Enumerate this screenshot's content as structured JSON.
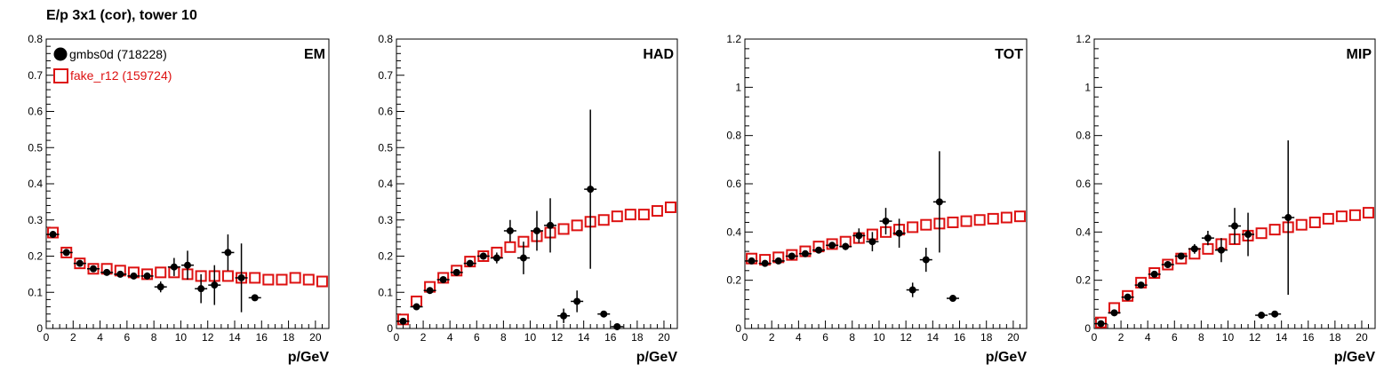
{
  "page": {
    "title": "E/p 3x1 (cor), tower 10"
  },
  "colors": {
    "data": "#000000",
    "mc": "#dd1111",
    "frame": "#000000"
  },
  "legend": [
    {
      "label": "gmbs0d (718228)",
      "color": "#000000",
      "marker": "filled-circle"
    },
    {
      "label": "fake_r12 (159724)",
      "color": "#dd1111",
      "marker": "open-square"
    }
  ],
  "chart_data": [
    {
      "type": "scatter",
      "title": "EM",
      "xlabel": "p/GeV",
      "ylabel": "",
      "xlim": [
        0,
        21
      ],
      "ylim": [
        0,
        0.8
      ],
      "xticks": [
        0,
        2,
        4,
        6,
        8,
        10,
        12,
        14,
        16,
        18,
        20
      ],
      "yticks": [
        0,
        0.1,
        0.2,
        0.3,
        0.4,
        0.5,
        0.6,
        0.7,
        0.8
      ],
      "legend_position": "top-left",
      "series": [
        {
          "name": "gmbs0d (718228)",
          "marker": "filled-circle",
          "x": [
            0.5,
            1.5,
            2.5,
            3.5,
            4.5,
            5.5,
            6.5,
            7.5,
            8.5,
            9.5,
            10.5,
            11.5,
            12.5,
            13.5,
            14.5,
            15.5
          ],
          "y": [
            0.26,
            0.21,
            0.18,
            0.165,
            0.155,
            0.15,
            0.145,
            0.145,
            0.115,
            0.17,
            0.175,
            0.11,
            0.12,
            0.21,
            0.14,
            0.085
          ],
          "yerr": [
            0.005,
            0.005,
            0.005,
            0.005,
            0.006,
            0.007,
            0.008,
            0.01,
            0.015,
            0.025,
            0.04,
            0.04,
            0.055,
            0.05,
            0.095,
            0.005
          ]
        },
        {
          "name": "fake_r12 (159724)",
          "marker": "open-square",
          "x": [
            0.5,
            1.5,
            2.5,
            3.5,
            4.5,
            5.5,
            6.5,
            7.5,
            8.5,
            9.5,
            10.5,
            11.5,
            12.5,
            13.5,
            14.5,
            15.5,
            16.5,
            17.5,
            18.5,
            19.5,
            20.5
          ],
          "y": [
            0.265,
            0.21,
            0.18,
            0.165,
            0.165,
            0.16,
            0.155,
            0.15,
            0.155,
            0.155,
            0.15,
            0.145,
            0.145,
            0.145,
            0.14,
            0.14,
            0.135,
            0.135,
            0.14,
            0.135,
            0.13
          ]
        }
      ]
    },
    {
      "type": "scatter",
      "title": "HAD",
      "xlabel": "p/GeV",
      "ylabel": "",
      "xlim": [
        0,
        21
      ],
      "ylim": [
        0,
        0.8
      ],
      "xticks": [
        0,
        2,
        4,
        6,
        8,
        10,
        12,
        14,
        16,
        18,
        20
      ],
      "yticks": [
        0,
        0.1,
        0.2,
        0.3,
        0.4,
        0.5,
        0.6,
        0.7,
        0.8
      ],
      "series": [
        {
          "name": "gmbs0d (718228)",
          "marker": "filled-circle",
          "x": [
            0.5,
            1.5,
            2.5,
            3.5,
            4.5,
            5.5,
            6.5,
            7.5,
            8.5,
            9.5,
            10.5,
            11.5,
            12.5,
            13.5,
            14.5,
            15.5,
            16.5
          ],
          "y": [
            0.02,
            0.06,
            0.105,
            0.135,
            0.155,
            0.18,
            0.2,
            0.195,
            0.27,
            0.195,
            0.27,
            0.285,
            0.035,
            0.075,
            0.385,
            0.04,
            0.005
          ],
          "yerr": [
            0.004,
            0.004,
            0.005,
            0.005,
            0.006,
            0.008,
            0.01,
            0.015,
            0.03,
            0.045,
            0.055,
            0.075,
            0.02,
            0.03,
            0.22,
            0.005,
            0.005
          ]
        },
        {
          "name": "fake_r12 (159724)",
          "marker": "open-square",
          "x": [
            0.5,
            1.5,
            2.5,
            3.5,
            4.5,
            5.5,
            6.5,
            7.5,
            8.5,
            9.5,
            10.5,
            11.5,
            12.5,
            13.5,
            14.5,
            15.5,
            16.5,
            17.5,
            18.5,
            19.5,
            20.5
          ],
          "y": [
            0.025,
            0.075,
            0.115,
            0.14,
            0.16,
            0.185,
            0.2,
            0.21,
            0.225,
            0.24,
            0.255,
            0.265,
            0.275,
            0.285,
            0.295,
            0.3,
            0.31,
            0.315,
            0.315,
            0.325,
            0.335
          ]
        }
      ]
    },
    {
      "type": "scatter",
      "title": "TOT",
      "xlabel": "p/GeV",
      "ylabel": "",
      "xlim": [
        0,
        21
      ],
      "ylim": [
        0,
        1.2
      ],
      "xticks": [
        0,
        2,
        4,
        6,
        8,
        10,
        12,
        14,
        16,
        18,
        20
      ],
      "yticks": [
        0,
        0.2,
        0.4,
        0.6,
        0.8,
        1,
        1.2
      ],
      "series": [
        {
          "name": "gmbs0d (718228)",
          "marker": "filled-circle",
          "x": [
            0.5,
            1.5,
            2.5,
            3.5,
            4.5,
            5.5,
            6.5,
            7.5,
            8.5,
            9.5,
            10.5,
            11.5,
            12.5,
            13.5,
            14.5,
            15.5
          ],
          "y": [
            0.28,
            0.27,
            0.28,
            0.3,
            0.31,
            0.325,
            0.345,
            0.34,
            0.385,
            0.36,
            0.445,
            0.395,
            0.16,
            0.285,
            0.525,
            0.125
          ],
          "yerr": [
            0.005,
            0.005,
            0.006,
            0.006,
            0.007,
            0.009,
            0.012,
            0.015,
            0.03,
            0.04,
            0.055,
            0.06,
            0.03,
            0.05,
            0.21,
            0.005
          ]
        },
        {
          "name": "fake_r12 (159724)",
          "marker": "open-square",
          "x": [
            0.5,
            1.5,
            2.5,
            3.5,
            4.5,
            5.5,
            6.5,
            7.5,
            8.5,
            9.5,
            10.5,
            11.5,
            12.5,
            13.5,
            14.5,
            15.5,
            16.5,
            17.5,
            18.5,
            19.5,
            20.5
          ],
          "y": [
            0.29,
            0.285,
            0.295,
            0.305,
            0.32,
            0.34,
            0.35,
            0.36,
            0.375,
            0.39,
            0.4,
            0.41,
            0.42,
            0.43,
            0.435,
            0.44,
            0.445,
            0.45,
            0.455,
            0.46,
            0.465
          ]
        }
      ]
    },
    {
      "type": "scatter",
      "title": "MIP",
      "xlabel": "p/GeV",
      "ylabel": "",
      "xlim": [
        0,
        21
      ],
      "ylim": [
        0,
        1.2
      ],
      "xticks": [
        0,
        2,
        4,
        6,
        8,
        10,
        12,
        14,
        16,
        18,
        20
      ],
      "yticks": [
        0,
        0.2,
        0.4,
        0.6,
        0.8,
        1,
        1.2
      ],
      "series": [
        {
          "name": "gmbs0d (718228)",
          "marker": "filled-circle",
          "x": [
            0.5,
            1.5,
            2.5,
            3.5,
            4.5,
            5.5,
            6.5,
            7.5,
            8.5,
            9.5,
            10.5,
            11.5,
            12.5,
            13.5,
            14.5
          ],
          "y": [
            0.02,
            0.065,
            0.13,
            0.18,
            0.225,
            0.265,
            0.3,
            0.33,
            0.375,
            0.325,
            0.425,
            0.39,
            0.055,
            0.06,
            0.46
          ],
          "yerr": [
            0.004,
            0.005,
            0.006,
            0.006,
            0.007,
            0.009,
            0.012,
            0.02,
            0.03,
            0.05,
            0.075,
            0.09,
            0.005,
            0.005,
            0.32
          ]
        },
        {
          "name": "fake_r12 (159724)",
          "marker": "open-square",
          "x": [
            0.5,
            1.5,
            2.5,
            3.5,
            4.5,
            5.5,
            6.5,
            7.5,
            8.5,
            9.5,
            10.5,
            11.5,
            12.5,
            13.5,
            14.5,
            15.5,
            16.5,
            17.5,
            18.5,
            19.5,
            20.5
          ],
          "y": [
            0.025,
            0.085,
            0.135,
            0.19,
            0.23,
            0.265,
            0.29,
            0.31,
            0.33,
            0.35,
            0.37,
            0.385,
            0.395,
            0.41,
            0.42,
            0.43,
            0.44,
            0.455,
            0.465,
            0.47,
            0.48
          ]
        }
      ]
    }
  ]
}
